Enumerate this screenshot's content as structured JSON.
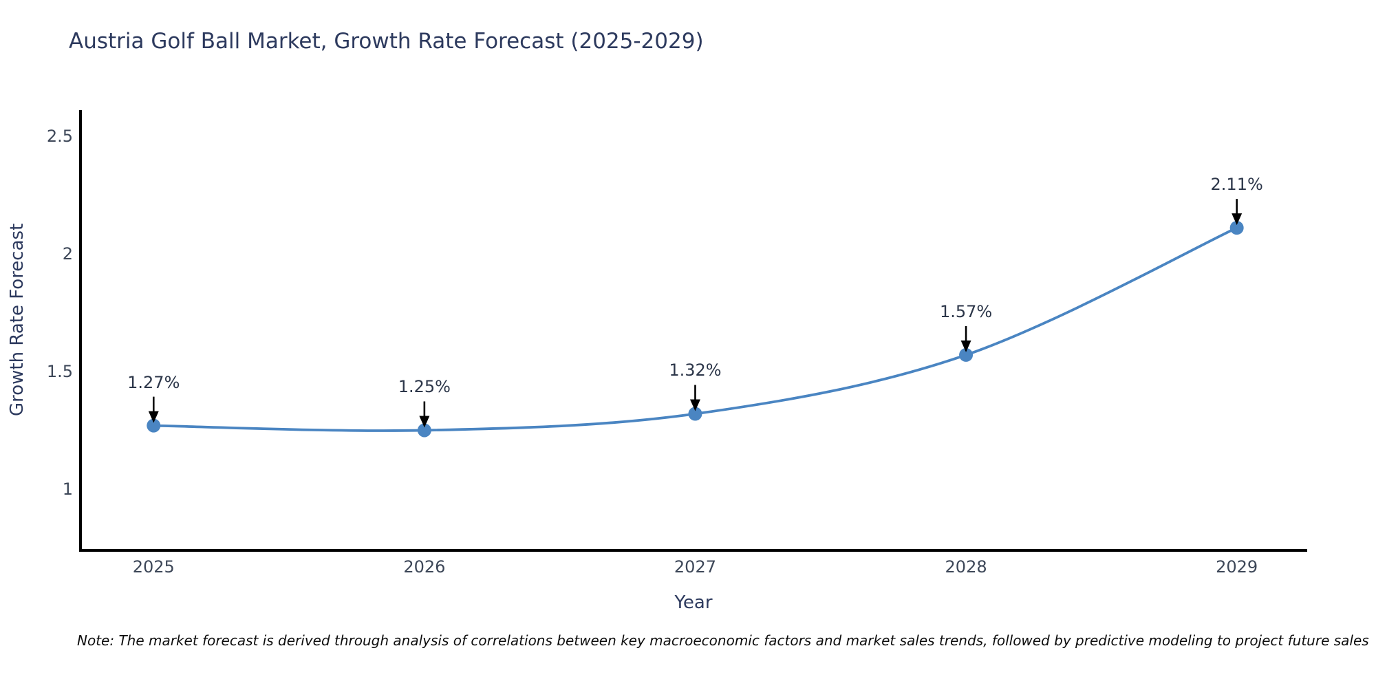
{
  "note": "Note: The market forecast is derived through analysis of correlations between key macroeconomic factors and market sales trends, followed by predictive modeling to project future sales",
  "chart_data": {
    "type": "line",
    "title": "Austria Golf Ball Market, Growth Rate Forecast (2025-2029)",
    "xlabel": "Year",
    "ylabel": "Growth Rate Forecast",
    "x": [
      2025,
      2026,
      2027,
      2028,
      2029
    ],
    "categories": [
      "2025",
      "2026",
      "2027",
      "2028",
      "2029"
    ],
    "values": [
      1.27,
      1.25,
      1.32,
      1.57,
      2.11
    ],
    "point_labels": [
      "1.27%",
      "1.25%",
      "1.32%",
      "1.57%",
      "2.11%"
    ],
    "yticks": [
      1,
      1.5,
      2,
      2.5
    ],
    "ytick_labels": [
      "1",
      "1.5",
      "2",
      "2.5"
    ],
    "ylim": [
      0.74,
      2.61
    ],
    "xlim": [
      2024.73,
      2029.26
    ],
    "grid": false,
    "legend": "none",
    "smooth": true,
    "line_color": "#4a85c2",
    "marker_color": "#4a85c2",
    "axis_color": "#000000",
    "annotation_arrow_color": "#000000"
  }
}
